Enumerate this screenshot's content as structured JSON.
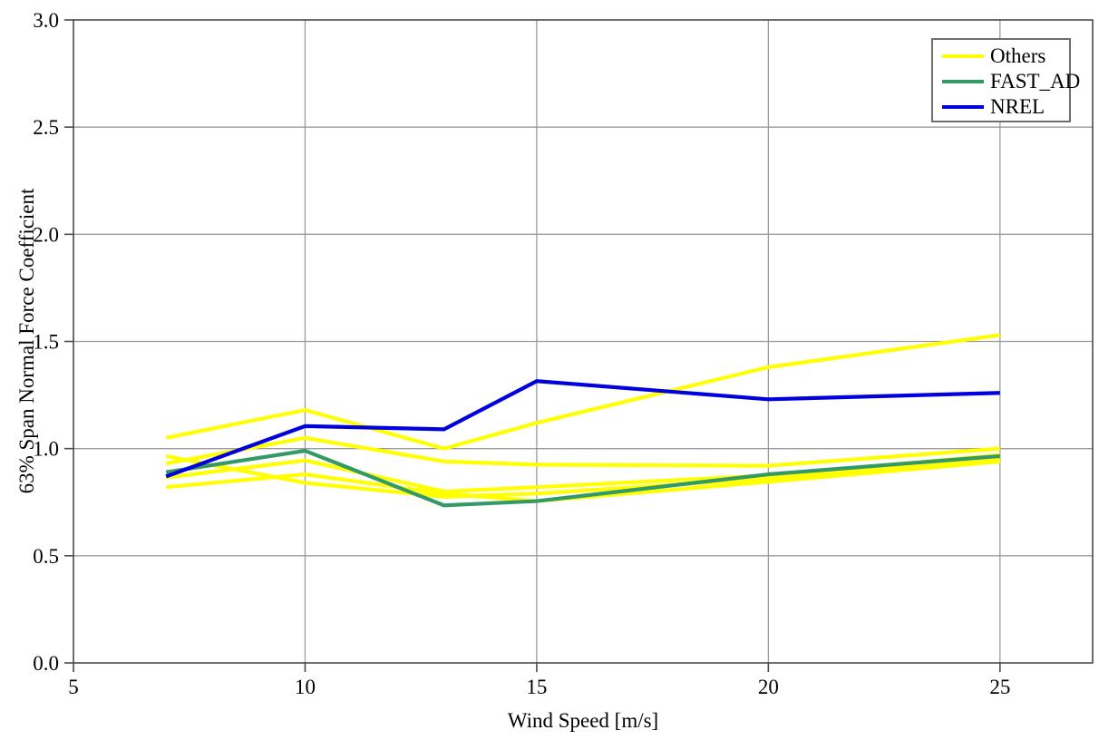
{
  "chart_data": {
    "type": "line",
    "title": "",
    "xlabel": "Wind Speed [m/s]",
    "ylabel": "63% Span Normal Force Coefficient",
    "xlim": [
      5,
      27
    ],
    "ylim": [
      0.0,
      3.0
    ],
    "grid": true,
    "legend_position": "top-right",
    "x_ticks": [
      {
        "value": 5,
        "label": "5"
      },
      {
        "value": 10,
        "label": "10"
      },
      {
        "value": 15,
        "label": "15"
      },
      {
        "value": 20,
        "label": "20"
      },
      {
        "value": 25,
        "label": "25"
      }
    ],
    "y_ticks": [
      {
        "value": 0.0,
        "label": "0.0"
      },
      {
        "value": 0.5,
        "label": "0.5"
      },
      {
        "value": 1.0,
        "label": "1.0"
      },
      {
        "value": 1.5,
        "label": "1.5"
      },
      {
        "value": 2.0,
        "label": "2.0"
      },
      {
        "value": 2.5,
        "label": "2.5"
      },
      {
        "value": 3.0,
        "label": "3.0"
      }
    ],
    "x_values": [
      7,
      10,
      13,
      15,
      20,
      25
    ],
    "series": [
      {
        "name": "Others",
        "color": "#ffff00",
        "lines": [
          [
            1.05,
            1.18,
            1.0,
            1.12,
            1.38,
            1.53
          ],
          [
            0.93,
            1.05,
            0.94,
            0.925,
            0.92,
            1.0
          ],
          [
            0.965,
            0.84,
            0.775,
            0.79,
            0.86,
            0.95
          ],
          [
            0.865,
            0.945,
            0.8,
            0.82,
            0.875,
            0.97
          ],
          [
            0.82,
            0.88,
            0.79,
            0.755,
            0.845,
            0.94
          ]
        ]
      },
      {
        "name": "FAST_AD",
        "color": "#339966",
        "lines": [
          [
            0.89,
            0.99,
            0.735,
            0.755,
            0.88,
            0.965
          ]
        ]
      },
      {
        "name": "NREL",
        "color": "#0000dd",
        "lines": [
          [
            0.87,
            1.105,
            1.09,
            1.315,
            1.23,
            1.26
          ]
        ]
      }
    ],
    "colors": {
      "grid": "#9a9a9a",
      "axis": "#4a4a4a",
      "text": "#000000",
      "background": "#ffffff"
    }
  }
}
